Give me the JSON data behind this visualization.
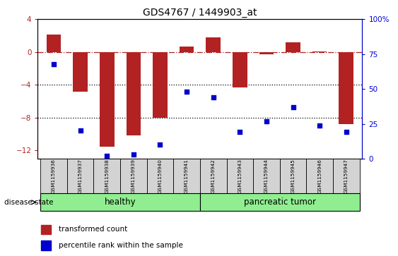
{
  "title": "GDS4767 / 1449903_at",
  "samples": [
    "GSM1159936",
    "GSM1159937",
    "GSM1159938",
    "GSM1159939",
    "GSM1159940",
    "GSM1159941",
    "GSM1159942",
    "GSM1159943",
    "GSM1159944",
    "GSM1159945",
    "GSM1159946",
    "GSM1159947"
  ],
  "transformed_count": [
    2.1,
    -4.8,
    -11.5,
    -10.2,
    -8.0,
    0.7,
    1.8,
    -4.3,
    -0.3,
    1.2,
    0.1,
    -8.8
  ],
  "percentile_rank": [
    68,
    20,
    2,
    3,
    10,
    48,
    44,
    19,
    27,
    37,
    24,
    19
  ],
  "healthy_count": 6,
  "tumor_count": 6,
  "bar_color": "#B22222",
  "dot_color": "#0000CD",
  "ylim_left": [
    -13,
    4
  ],
  "ylim_right": [
    0,
    100
  ],
  "right_yticks": [
    0,
    25,
    50,
    75,
    100
  ],
  "right_yticklabels": [
    "0",
    "25",
    "50",
    "75",
    "100%"
  ],
  "left_yticks": [
    -12,
    -8,
    -4,
    0,
    4
  ],
  "hline_y": 0,
  "dotted_lines": [
    -4,
    -8
  ],
  "healthy_color": "#90EE90",
  "tumor_color": "#90EE90",
  "group_label_healthy": "healthy",
  "group_label_tumor": "pancreatic tumor",
  "disease_state_label": "disease state",
  "legend_bar_label": "transformed count",
  "legend_dot_label": "percentile rank within the sample",
  "tick_label_bg": "#d3d3d3",
  "figsize": [
    5.63,
    3.63
  ],
  "dpi": 100
}
